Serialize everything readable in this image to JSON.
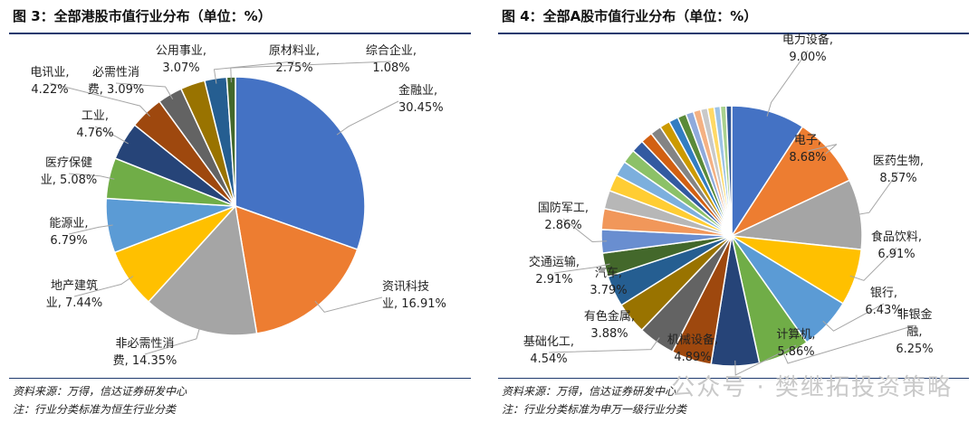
{
  "charts": [
    {
      "title": "图 3：全部港股市值行业分布（单位：%）",
      "source": "资料来源：万得，信达证券研发中心",
      "note": "注：行业分类标准为恒生行业分类"
    },
    {
      "title": "图 4：全部A股市值行业分布（单位：%）",
      "source": "资料来源：万得，信达证券研发中心",
      "note": "注：行业分类标准为申万一级行业分类"
    }
  ],
  "watermark": "公众号 · 樊继拓投资策略",
  "chart_data": [
    {
      "type": "pie",
      "title": "图 3：全部港股市值行业分布（单位：%）",
      "slices": [
        {
          "label": "金融业",
          "value": 30.45,
          "color": "#4472C4"
        },
        {
          "label": "资讯科技业",
          "value": 16.91,
          "color": "#ED7D31"
        },
        {
          "label": "非必需性消费",
          "value": 14.35,
          "color": "#A5A5A5"
        },
        {
          "label": "地产建筑业",
          "value": 7.44,
          "color": "#FFC000"
        },
        {
          "label": "能源业",
          "value": 6.79,
          "color": "#5B9BD5"
        },
        {
          "label": "医疗保健业",
          "value": 5.08,
          "color": "#70AD47"
        },
        {
          "label": "工业",
          "value": 4.76,
          "color": "#264478"
        },
        {
          "label": "电讯业",
          "value": 4.22,
          "color": "#9E480E"
        },
        {
          "label": "必需性消费",
          "value": 3.09,
          "color": "#636363"
        },
        {
          "label": "公用事业",
          "value": 3.07,
          "color": "#997300"
        },
        {
          "label": "原材料业",
          "value": 2.75,
          "color": "#255E91"
        },
        {
          "label": "综合企业",
          "value": 1.08,
          "color": "#43682B"
        }
      ],
      "labels": [
        {
          "lines": [
            "金融业,",
            "30.45%"
          ]
        },
        {
          "lines": [
            "资讯科技",
            "业, 16.91%"
          ]
        },
        {
          "lines": [
            "非必需性消",
            "费, 14.35%"
          ]
        },
        {
          "lines": [
            "地产建筑",
            "业, 7.44%"
          ]
        },
        {
          "lines": [
            "能源业,",
            "6.79%"
          ]
        },
        {
          "lines": [
            "医疗保健",
            "业, 5.08%"
          ]
        },
        {
          "lines": [
            "工业,",
            "4.76%"
          ]
        },
        {
          "lines": [
            "电讯业,",
            "4.22%"
          ]
        },
        {
          "lines": [
            "必需性消",
            "费, 3.09%"
          ]
        },
        {
          "lines": [
            "公用事业,",
            "3.07%"
          ]
        },
        {
          "lines": [
            "原材料业,",
            "2.75%"
          ]
        },
        {
          "lines": [
            "综合企业,",
            "1.08%"
          ]
        }
      ]
    },
    {
      "type": "pie",
      "title": "图 4：全部A股市值行业分布（单位：%）",
      "slices": [
        {
          "label": "电力设备",
          "value": 9.0,
          "color": "#4472C4"
        },
        {
          "label": "电子",
          "value": 8.68,
          "color": "#ED7D31"
        },
        {
          "label": "医药生物",
          "value": 8.57,
          "color": "#A5A5A5"
        },
        {
          "label": "食品饮料",
          "value": 6.91,
          "color": "#FFC000"
        },
        {
          "label": "银行",
          "value": 6.43,
          "color": "#5B9BD5"
        },
        {
          "label": "非银金融",
          "value": 6.25,
          "color": "#70AD47"
        },
        {
          "label": "计算机",
          "value": 5.86,
          "color": "#264478"
        },
        {
          "label": "机械设备",
          "value": 4.89,
          "color": "#9E480E"
        },
        {
          "label": "基础化工",
          "value": 4.54,
          "color": "#636363"
        },
        {
          "label": "有色金属",
          "value": 3.88,
          "color": "#997300"
        },
        {
          "label": "汽车",
          "value": 3.79,
          "color": "#255E91"
        },
        {
          "label": "交通运输",
          "value": 2.91,
          "color": "#43682B"
        },
        {
          "label": "国防军工",
          "value": 2.86,
          "color": "#698ED0"
        },
        {
          "label": "",
          "value": 2.55,
          "color": "#F1975A"
        },
        {
          "label": "",
          "value": 2.25,
          "color": "#B7B7B7"
        },
        {
          "label": "",
          "value": 2.05,
          "color": "#FFCD33"
        },
        {
          "label": "",
          "value": 1.85,
          "color": "#7CAFDD"
        },
        {
          "label": "",
          "value": 1.7,
          "color": "#8CC168"
        },
        {
          "label": "",
          "value": 1.55,
          "color": "#335AA1"
        },
        {
          "label": "",
          "value": 1.45,
          "color": "#D26012"
        },
        {
          "label": "",
          "value": 1.35,
          "color": "#848484"
        },
        {
          "label": "",
          "value": 1.25,
          "color": "#CC9A00"
        },
        {
          "label": "",
          "value": 1.15,
          "color": "#327DC2"
        },
        {
          "label": "",
          "value": 1.05,
          "color": "#5A8A39"
        },
        {
          "label": "",
          "value": 0.95,
          "color": "#8FAADC"
        },
        {
          "label": "",
          "value": 0.9,
          "color": "#F4B183"
        },
        {
          "label": "",
          "value": 0.85,
          "color": "#C9C9C9"
        },
        {
          "label": "",
          "value": 0.8,
          "color": "#FFD966"
        },
        {
          "label": "",
          "value": 0.75,
          "color": "#9DC3E6"
        },
        {
          "label": "",
          "value": 0.7,
          "color": "#A9D18E"
        },
        {
          "label": "",
          "value": 0.68,
          "color": "#2F5597"
        }
      ],
      "labels": [
        {
          "lines": [
            "电力设备,",
            "9.00%"
          ]
        },
        {
          "lines": [
            "电子,",
            "8.68%"
          ]
        },
        {
          "lines": [
            "医药生物,",
            "8.57%"
          ]
        },
        {
          "lines": [
            "食品饮料,",
            "6.91%"
          ]
        },
        {
          "lines": [
            "银行,",
            "6.43%"
          ]
        },
        {
          "lines": [
            "非银金",
            "融,",
            "6.25%"
          ]
        },
        {
          "lines": [
            "计算机,",
            "5.86%"
          ]
        },
        {
          "lines": [
            "机械设备,",
            "4.89%"
          ]
        },
        {
          "lines": [
            "基础化工,",
            "4.54%"
          ]
        },
        {
          "lines": [
            "有色金属,",
            "3.88%"
          ]
        },
        {
          "lines": [
            "汽车,",
            "3.79%"
          ]
        },
        {
          "lines": [
            "交通运输,",
            "2.91%"
          ]
        },
        {
          "lines": [
            "国防军工,",
            "2.86%"
          ]
        }
      ]
    }
  ]
}
